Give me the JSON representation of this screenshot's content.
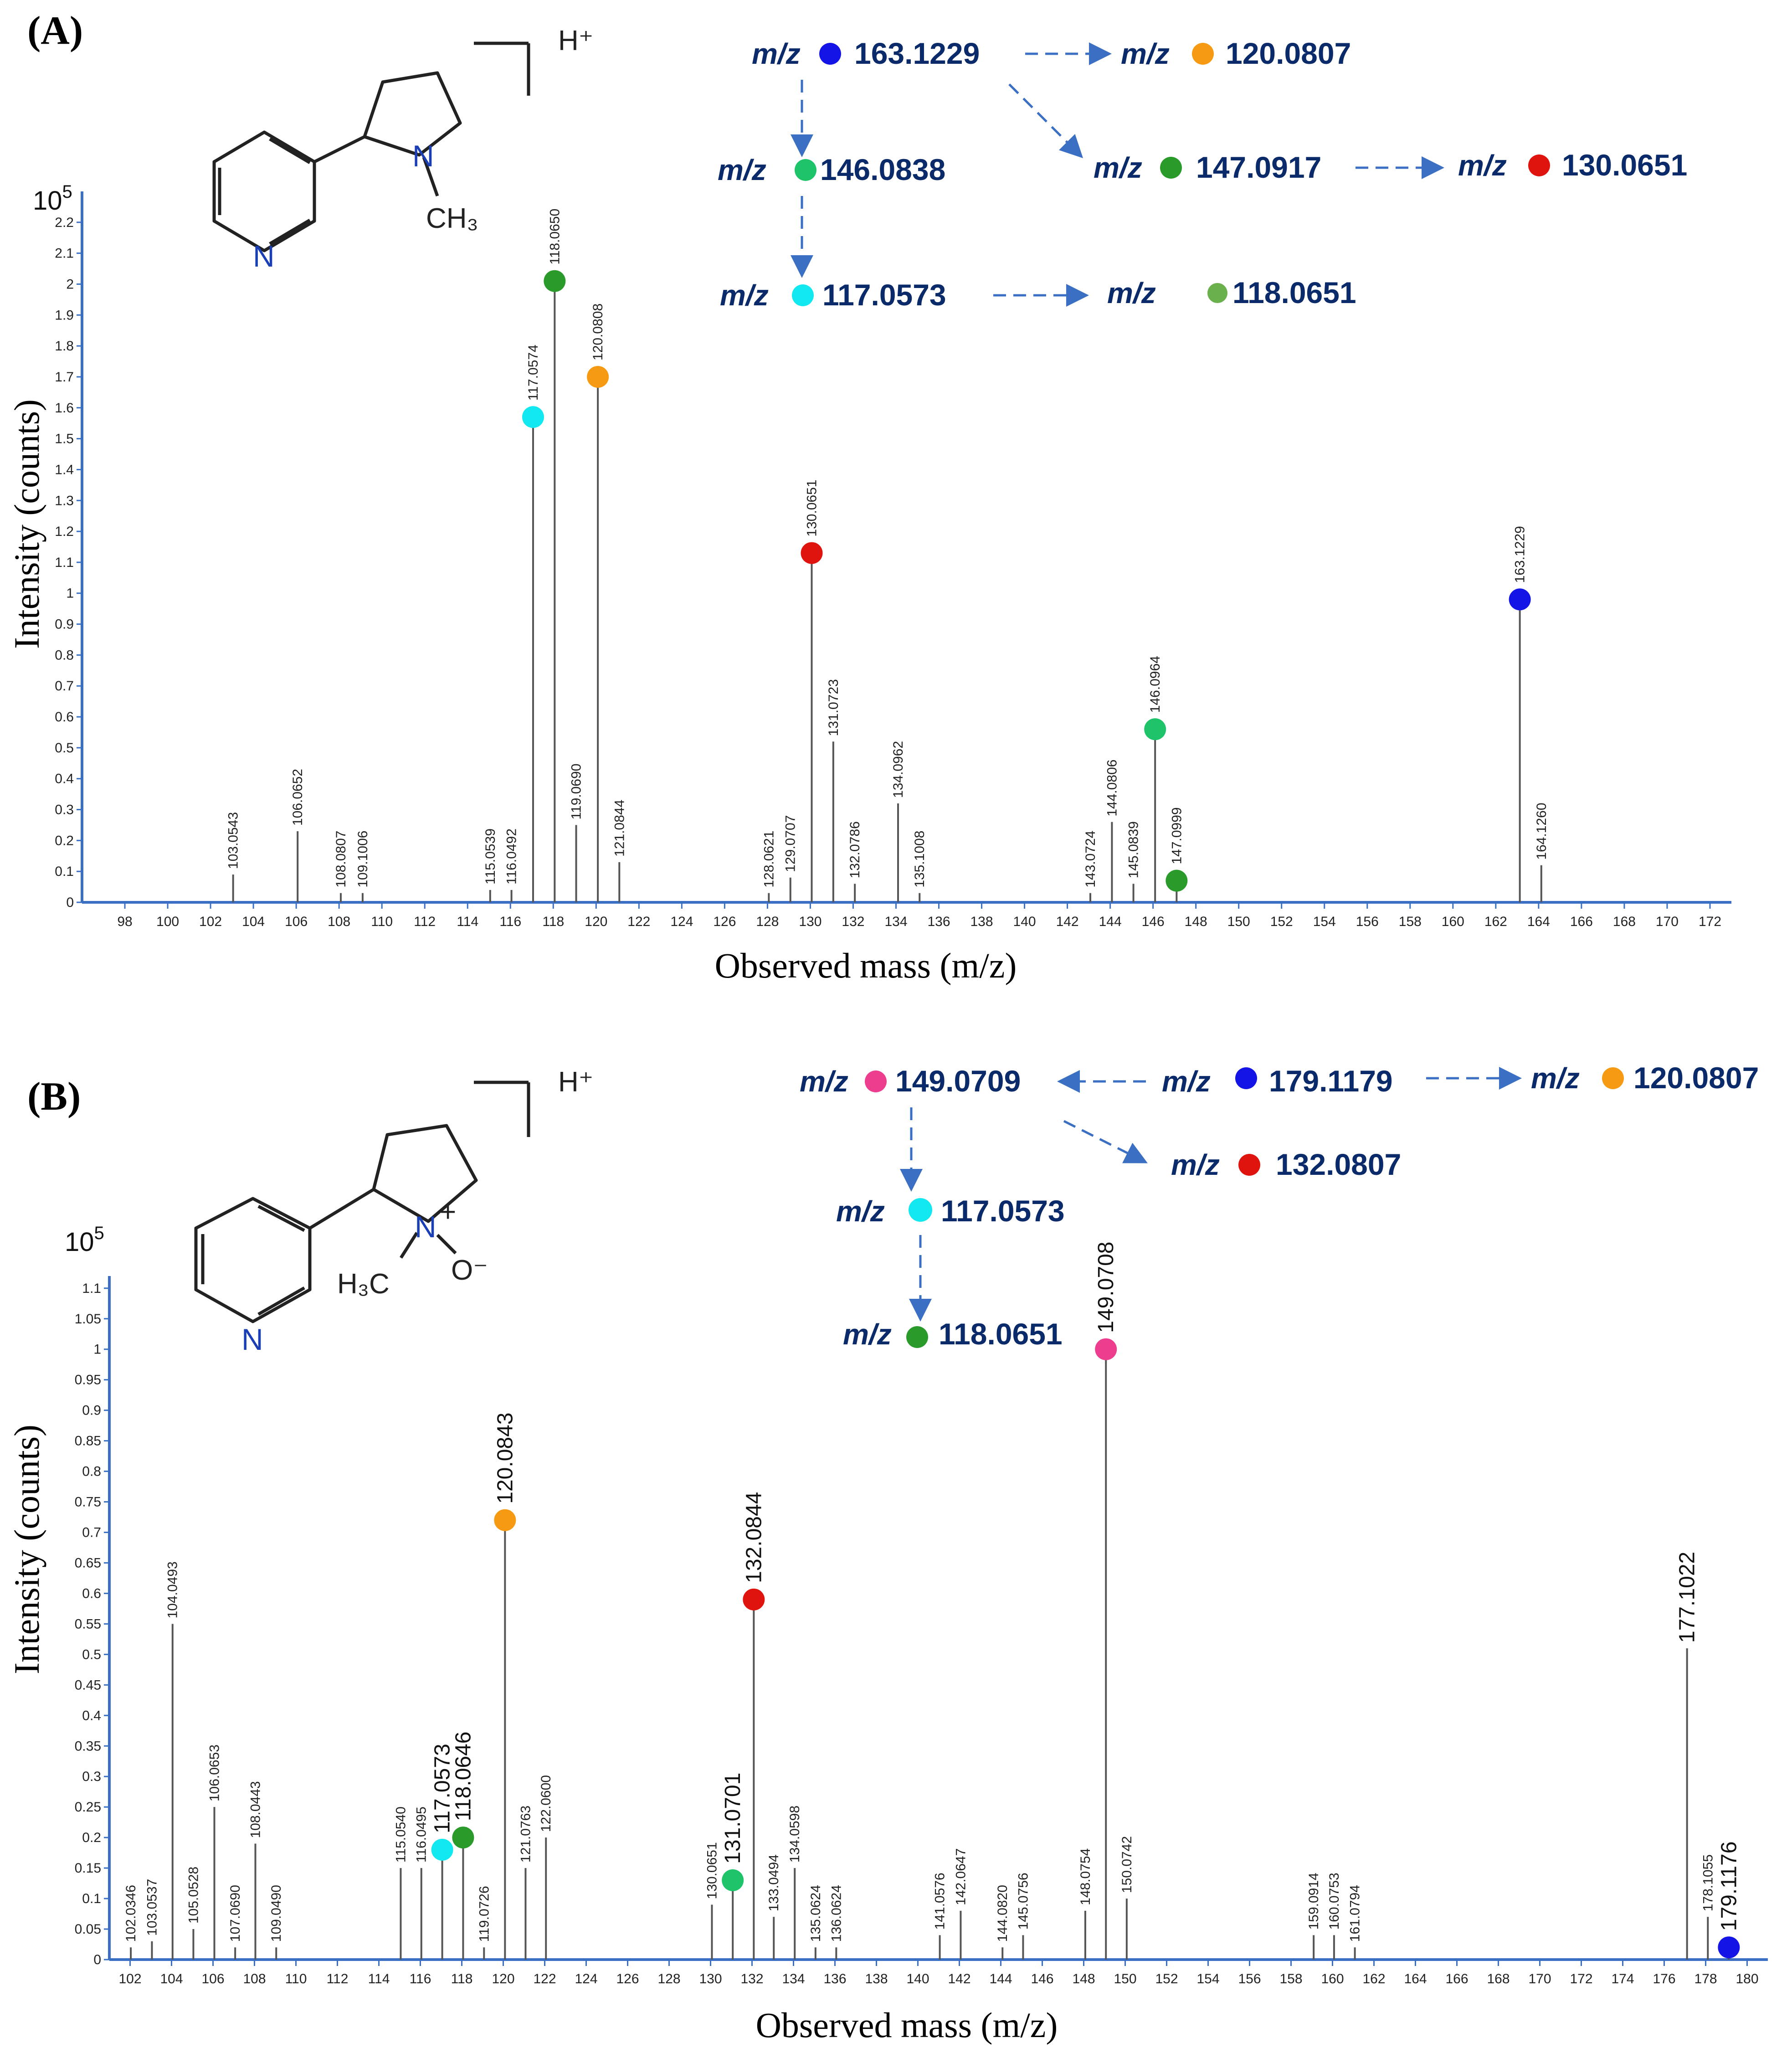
{
  "colors": {
    "axis": "#3a6fc4",
    "arrow": "#3a6fc4",
    "peak": "#555555",
    "scheme_text": "#0a2a6a",
    "blue": "#1414e6",
    "orange": "#f59a12",
    "green": "#2a9a2a",
    "mint": "#1fc46a",
    "cyan": "#12e8f0",
    "red": "#e0140e",
    "pink": "#ec3d8f",
    "lightgreen": "#6ab04c"
  },
  "chart_data": [
    {
      "type": "bar",
      "panel": "(A)",
      "xlabel": "Observed mass (m/z)",
      "ylabel": "Intensity (counts)",
      "y_exponent_base": "10",
      "y_exponent_power": "5",
      "xlim": [
        96,
        173
      ],
      "ylim": [
        0,
        2.3
      ],
      "x_ticks": [
        98,
        100,
        102,
        104,
        106,
        108,
        110,
        112,
        114,
        116,
        118,
        120,
        122,
        124,
        126,
        128,
        130,
        132,
        134,
        136,
        138,
        140,
        142,
        144,
        146,
        148,
        150,
        152,
        154,
        156,
        158,
        160,
        162,
        164,
        166,
        168,
        170,
        172
      ],
      "y_ticks": [
        "0",
        "0.1",
        "0.2",
        "0.3",
        "0.4",
        "0.5",
        "0.6",
        "0.7",
        "0.8",
        "0.9",
        "1",
        "1.1",
        "1.2",
        "1.3",
        "1.4",
        "1.5",
        "1.6",
        "1.7",
        "1.8",
        "1.9",
        "2",
        "2.1",
        "2.2"
      ],
      "peaks": [
        {
          "x": 103.0543,
          "y": 0.09,
          "label": "103.0543"
        },
        {
          "x": 106.0652,
          "y": 0.23,
          "label": "106.0652"
        },
        {
          "x": 108.0807,
          "y": 0.03,
          "label": "108.0807"
        },
        {
          "x": 109.1006,
          "y": 0.03,
          "label": "109.1006"
        },
        {
          "x": 115.0539,
          "y": 0.04,
          "label": "115.0539"
        },
        {
          "x": 116.0492,
          "y": 0.04,
          "label": "116.0492"
        },
        {
          "x": 117.0574,
          "y": 1.57,
          "label": "117.0574",
          "marker": "cyan"
        },
        {
          "x": 118.065,
          "y": 2.01,
          "label": "118.0650",
          "marker": "green"
        },
        {
          "x": 119.069,
          "y": 0.25,
          "label": "119.0690"
        },
        {
          "x": 120.0808,
          "y": 1.7,
          "label": "120.0808",
          "marker": "orange"
        },
        {
          "x": 121.0844,
          "y": 0.13,
          "label": "121.0844"
        },
        {
          "x": 128.0621,
          "y": 0.03,
          "label": "128.0621"
        },
        {
          "x": 129.0707,
          "y": 0.08,
          "label": "129.0707"
        },
        {
          "x": 130.0651,
          "y": 1.13,
          "label": "130.0651",
          "marker": "red"
        },
        {
          "x": 131.0723,
          "y": 0.52,
          "label": "131.0723"
        },
        {
          "x": 132.0786,
          "y": 0.06,
          "label": "132.0786"
        },
        {
          "x": 134.0962,
          "y": 0.32,
          "label": "134.0962"
        },
        {
          "x": 135.1008,
          "y": 0.03,
          "label": "135.1008"
        },
        {
          "x": 143.0724,
          "y": 0.03,
          "label": "143.0724"
        },
        {
          "x": 144.0806,
          "y": 0.26,
          "label": "144.0806"
        },
        {
          "x": 145.0839,
          "y": 0.06,
          "label": "145.0839"
        },
        {
          "x": 146.0964,
          "y": 0.56,
          "label": "146.0964",
          "marker": "mint"
        },
        {
          "x": 147.0999,
          "y": 0.07,
          "label": "147.0999",
          "marker": "green"
        },
        {
          "x": 163.1229,
          "y": 0.98,
          "label": "163.1229",
          "marker": "blue"
        },
        {
          "x": 164.126,
          "y": 0.12,
          "label": "164.1260"
        }
      ]
    },
    {
      "type": "bar",
      "panel": "(B)",
      "xlabel": "Observed mass (m/z)",
      "ylabel": "Intensity (counts)",
      "y_exponent_base": "10",
      "y_exponent_power": "5",
      "xlim": [
        101,
        181
      ],
      "ylim": [
        0,
        1.12
      ],
      "x_ticks": [
        102,
        104,
        106,
        108,
        110,
        112,
        114,
        116,
        118,
        120,
        122,
        124,
        126,
        128,
        130,
        132,
        134,
        136,
        138,
        140,
        142,
        144,
        146,
        148,
        150,
        152,
        154,
        156,
        158,
        160,
        162,
        164,
        166,
        168,
        170,
        172,
        174,
        176,
        178,
        180
      ],
      "y_ticks": [
        "0",
        "0.05",
        "0.1",
        "0.15",
        "0.2",
        "0.25",
        "0.3",
        "0.35",
        "0.4",
        "0.45",
        "0.5",
        "0.55",
        "0.6",
        "0.65",
        "0.7",
        "0.75",
        "0.8",
        "0.85",
        "0.9",
        "0.95",
        "1",
        "1.05",
        "1.1"
      ],
      "peaks": [
        {
          "x": 102.0346,
          "y": 0.02,
          "label": "102.0346"
        },
        {
          "x": 103.0537,
          "y": 0.03,
          "label": "103.0537"
        },
        {
          "x": 104.0493,
          "y": 0.55,
          "label": "104.0493"
        },
        {
          "x": 105.0528,
          "y": 0.05,
          "label": "105.0528"
        },
        {
          "x": 106.0653,
          "y": 0.25,
          "label": "106.0653"
        },
        {
          "x": 107.069,
          "y": 0.02,
          "label": "107.0690"
        },
        {
          "x": 108.0443,
          "y": 0.19,
          "label": "108.0443"
        },
        {
          "x": 109.049,
          "y": 0.02,
          "label": "109.0490"
        },
        {
          "x": 115.054,
          "y": 0.15,
          "label": "115.0540"
        },
        {
          "x": 116.0495,
          "y": 0.15,
          "label": "116.0495"
        },
        {
          "x": 117.0573,
          "y": 0.18,
          "label": "117.0573",
          "marker": "cyan",
          "big": true
        },
        {
          "x": 118.0646,
          "y": 0.2,
          "label": "118.0646",
          "marker": "green",
          "big": true
        },
        {
          "x": 119.0726,
          "y": 0.02,
          "label": "119.0726"
        },
        {
          "x": 120.0843,
          "y": 0.72,
          "label": "120.0843",
          "marker": "orange",
          "big": true
        },
        {
          "x": 121.0763,
          "y": 0.15,
          "label": "121.0763"
        },
        {
          "x": 122.06,
          "y": 0.2,
          "label": "122.0600"
        },
        {
          "x": 130.0651,
          "y": 0.09,
          "label": "130.0651"
        },
        {
          "x": 131.0701,
          "y": 0.13,
          "label": "131.0701",
          "marker": "mint",
          "big": true
        },
        {
          "x": 132.0844,
          "y": 0.59,
          "label": "132.0844",
          "marker": "red",
          "big": true
        },
        {
          "x": 133.0494,
          "y": 0.07,
          "label": "133.0494"
        },
        {
          "x": 134.0598,
          "y": 0.15,
          "label": "134.0598"
        },
        {
          "x": 135.0624,
          "y": 0.02,
          "label": "135.0624"
        },
        {
          "x": 136.0624,
          "y": 0.02,
          "label": "136.0624"
        },
        {
          "x": 141.0576,
          "y": 0.04,
          "label": "141.0576"
        },
        {
          "x": 142.0647,
          "y": 0.08,
          "label": "142.0647"
        },
        {
          "x": 144.082,
          "y": 0.02,
          "label": "144.0820"
        },
        {
          "x": 145.0756,
          "y": 0.04,
          "label": "145.0756"
        },
        {
          "x": 148.0754,
          "y": 0.08,
          "label": "148.0754"
        },
        {
          "x": 149.0708,
          "y": 1.0,
          "label": "149.0708",
          "marker": "pink",
          "big": true
        },
        {
          "x": 150.0742,
          "y": 0.1,
          "label": "150.0742"
        },
        {
          "x": 159.0914,
          "y": 0.04,
          "label": "159.0914"
        },
        {
          "x": 160.0753,
          "y": 0.04,
          "label": "160.0753"
        },
        {
          "x": 161.0794,
          "y": 0.02,
          "label": "161.0794"
        },
        {
          "x": 177.1022,
          "y": 0.51,
          "label": "177.1022",
          "big": true
        },
        {
          "x": 178.1055,
          "y": 0.07,
          "label": "178.1055"
        },
        {
          "x": 179.1176,
          "y": 0.02,
          "label": "179.1176",
          "marker": "blue",
          "big": true
        }
      ]
    }
  ],
  "structure_labels": {
    "h_plus": "H⁺",
    "n": "N",
    "ch3": "CH₃",
    "h3c": "H₃C",
    "plus": "+",
    "o_minus": "O⁻"
  },
  "schemes": [
    {
      "panel": "(A)",
      "nodes": [
        {
          "mz": "m/z",
          "value": "163.1229",
          "color": "blue"
        },
        {
          "mz": "m/z",
          "value": "120.0807",
          "color": "orange"
        },
        {
          "mz": "m/z",
          "value": "146.0838",
          "color": "mint"
        },
        {
          "mz": "m/z",
          "value": "147.0917",
          "color": "green"
        },
        {
          "mz": "m/z",
          "value": "130.0651",
          "color": "red"
        },
        {
          "mz": "m/z",
          "value": "117.0573",
          "color": "cyan"
        },
        {
          "mz": "m/z",
          "value": "118.0651",
          "color": "lightgreen"
        }
      ]
    },
    {
      "panel": "(B)",
      "nodes": [
        {
          "mz": "m/z",
          "value": "149.0709",
          "color": "pink"
        },
        {
          "mz": "m/z",
          "value": "179.1179",
          "color": "blue"
        },
        {
          "mz": "m/z",
          "value": "120.0807",
          "color": "orange"
        },
        {
          "mz": "m/z",
          "value": "132.0807",
          "color": "red"
        },
        {
          "mz": "m/z",
          "value": "117.0573",
          "color": "cyan"
        },
        {
          "mz": "m/z",
          "value": "118.0651",
          "color": "green"
        }
      ]
    }
  ]
}
